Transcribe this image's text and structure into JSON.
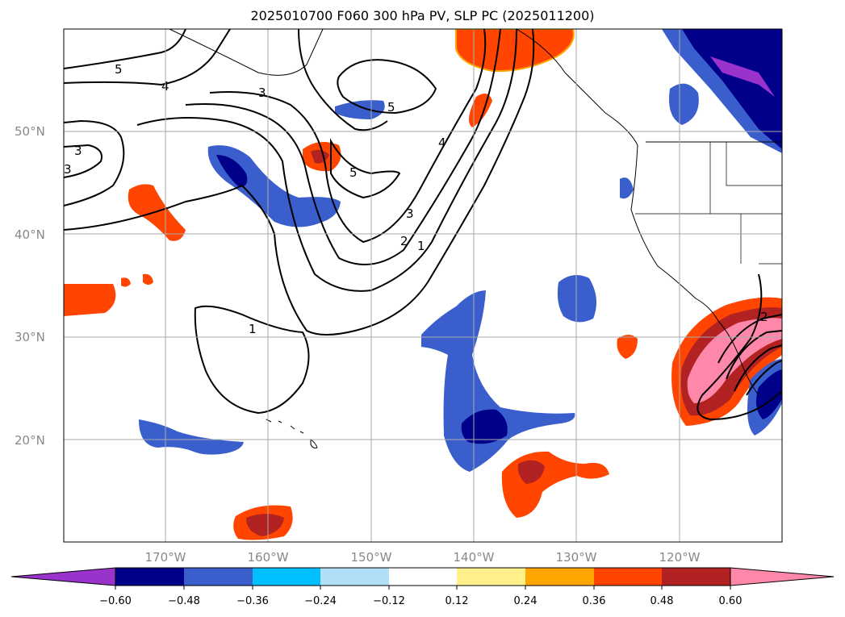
{
  "title": "2025010700 F060 300 hPa PV, SLP PC (2025011200)",
  "map": {
    "lat_labels": [
      "50°N",
      "40°N",
      "30°N",
      "20°N"
    ],
    "lon_labels": [
      "170°W",
      "160°W",
      "150°W",
      "140°W",
      "130°W",
      "120°W"
    ]
  },
  "contour_labels": [
    "5",
    "4",
    "3",
    "3",
    "3",
    "5",
    "5",
    "4",
    "3",
    "2",
    "1",
    "1",
    "2"
  ],
  "colorbar": {
    "colors": [
      "#9933cc",
      "#00008b",
      "#3a5fcd",
      "#00bfff",
      "#b0e0f8",
      "#ffffff",
      "#fff08c",
      "#ffa500",
      "#ff4500",
      "#b22222",
      "#ff88aa"
    ],
    "tick_labels": [
      "−0.60",
      "−0.48",
      "−0.36",
      "−0.24",
      "−0.12",
      "0.12",
      "0.24",
      "0.36",
      "0.48",
      "0.60"
    ]
  }
}
